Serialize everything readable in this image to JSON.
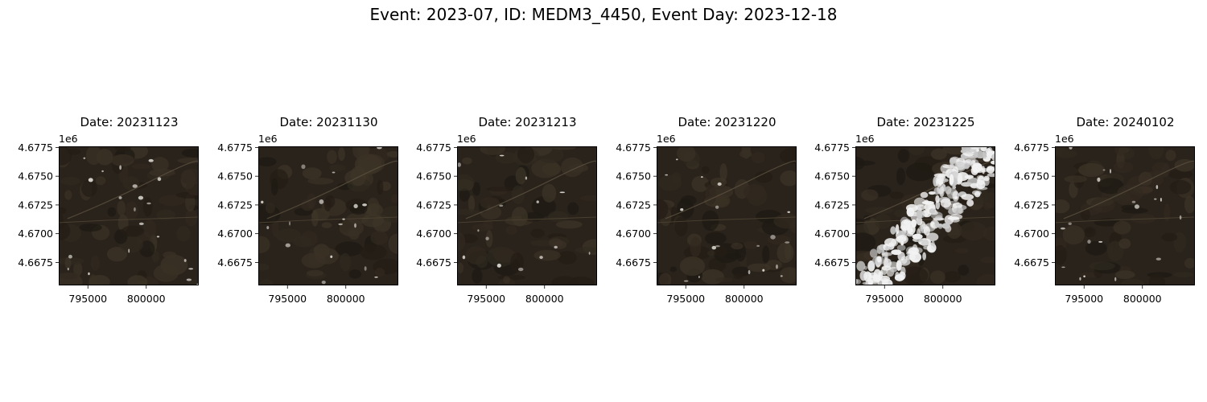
{
  "suptitle": "Event: 2023-07, ID: MEDM3_4450, Event Day: 2023-12-18",
  "colors": {
    "dark_terrain": "#2a231c",
    "cloud": "#f2f2f2"
  },
  "chart_data": [
    {
      "type": "image",
      "title": "Date: 20231123",
      "cloud_cover": "scattered-small",
      "xticks": [
        "795000",
        "800000"
      ],
      "yticks": [
        "4.6775",
        "4.6750",
        "4.6725",
        "4.6700",
        "4.6675"
      ],
      "y_offset_label": "1e6",
      "xlim": [
        792500,
        804500
      ],
      "ylim": [
        4665500,
        4677600
      ]
    },
    {
      "type": "image",
      "title": "Date: 20231130",
      "cloud_cover": "scattered-small",
      "xticks": [
        "795000",
        "800000"
      ],
      "yticks": [
        "4.6775",
        "4.6750",
        "4.6725",
        "4.6700",
        "4.6675"
      ],
      "y_offset_label": "1e6",
      "xlim": [
        792500,
        804500
      ],
      "ylim": [
        4665500,
        4677600
      ]
    },
    {
      "type": "image",
      "title": "Date: 20231213",
      "cloud_cover": "scattered-small",
      "xticks": [
        "795000",
        "800000"
      ],
      "yticks": [
        "4.6775",
        "4.6750",
        "4.6725",
        "4.6700",
        "4.6675"
      ],
      "y_offset_label": "1e6",
      "xlim": [
        792500,
        804500
      ],
      "ylim": [
        4665500,
        4677600
      ]
    },
    {
      "type": "image",
      "title": "Date: 20231220",
      "cloud_cover": "scattered-small",
      "xticks": [
        "795000",
        "800000"
      ],
      "yticks": [
        "4.6775",
        "4.6750",
        "4.6725",
        "4.6700",
        "4.6675"
      ],
      "y_offset_label": "1e6",
      "xlim": [
        792500,
        804500
      ],
      "ylim": [
        4665500,
        4677600
      ]
    },
    {
      "type": "image",
      "title": "Date: 20231225",
      "cloud_cover": "heavy-diagonal-band",
      "xticks": [
        "795000",
        "800000"
      ],
      "yticks": [
        "4.6775",
        "4.6750",
        "4.6725",
        "4.6700",
        "4.6675"
      ],
      "y_offset_label": "1e6",
      "xlim": [
        792500,
        804500
      ],
      "ylim": [
        4665500,
        4677600
      ]
    },
    {
      "type": "image",
      "title": "Date: 20240102",
      "cloud_cover": "scattered-small",
      "xticks": [
        "795000",
        "800000"
      ],
      "yticks": [
        "4.6775",
        "4.6750",
        "4.6725",
        "4.6700",
        "4.6675"
      ],
      "y_offset_label": "1e6",
      "xlim": [
        792500,
        804500
      ],
      "ylim": [
        4665500,
        4677600
      ]
    }
  ]
}
